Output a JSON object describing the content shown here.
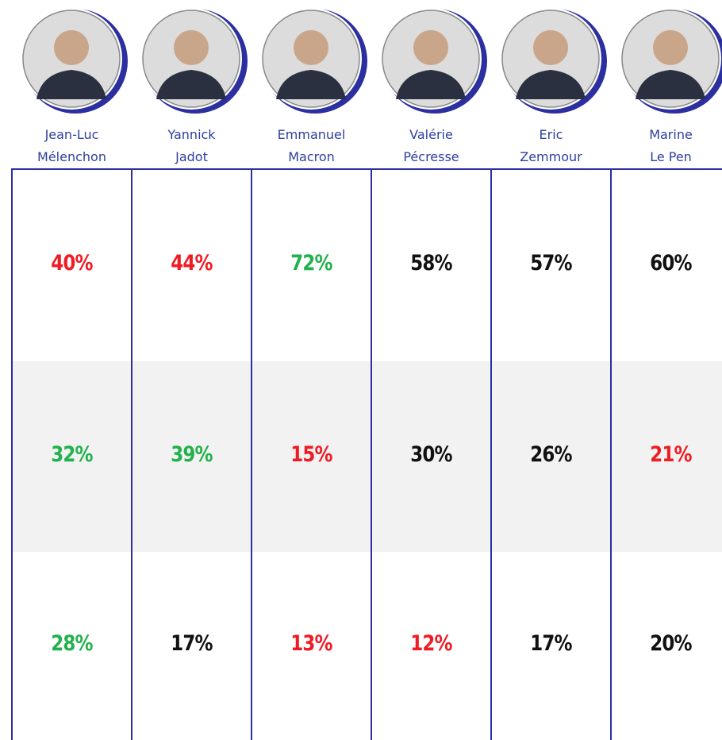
{
  "table": {
    "columns": [
      {
        "name": [
          "Jean-Luc",
          "Mélenchon"
        ]
      },
      {
        "name": [
          "Yannick",
          "Jadot"
        ]
      },
      {
        "name": [
          "Emmanuel",
          "Macron"
        ]
      },
      {
        "name": [
          "Valérie",
          "Pécresse"
        ]
      },
      {
        "name": [
          "Eric",
          "Zemmour"
        ]
      },
      {
        "name": [
          "Marine",
          "Le Pen"
        ]
      }
    ],
    "rows": [
      [
        {
          "text": "40%",
          "color": "#ee1c24"
        },
        {
          "text": "44%",
          "color": "#ee1c24"
        },
        {
          "text": "72%",
          "color": "#22b14c"
        },
        {
          "text": "58%",
          "color": "#111111"
        },
        {
          "text": "57%",
          "color": "#111111"
        },
        {
          "text": "60%",
          "color": "#111111"
        }
      ],
      [
        {
          "text": "32%",
          "color": "#22b14c"
        },
        {
          "text": "39%",
          "color": "#22b14c"
        },
        {
          "text": "15%",
          "color": "#ee1c24"
        },
        {
          "text": "30%",
          "color": "#111111"
        },
        {
          "text": "26%",
          "color": "#111111"
        },
        {
          "text": "21%",
          "color": "#ee1c24"
        }
      ],
      [
        {
          "text": "28%",
          "color": "#22b14c"
        },
        {
          "text": "17%",
          "color": "#111111"
        },
        {
          "text": "13%",
          "color": "#ee1c24"
        },
        {
          "text": "12%",
          "color": "#ee1c24"
        },
        {
          "text": "17%",
          "color": "#111111"
        },
        {
          "text": "20%",
          "color": "#111111"
        }
      ]
    ]
  }
}
